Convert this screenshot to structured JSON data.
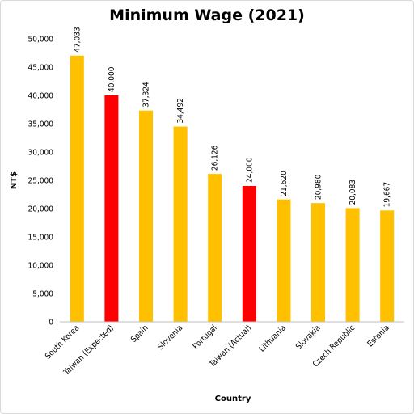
{
  "chart_data": {
    "type": "bar",
    "title": "Minimum Wage (2021)",
    "xlabel": "Country",
    "ylabel": "NT$",
    "ylim": [
      0,
      50000
    ],
    "yticks": [
      0,
      5000,
      10000,
      15000,
      20000,
      25000,
      30000,
      35000,
      40000,
      45000,
      50000
    ],
    "ytick_labels": [
      "0",
      "5,000",
      "10,000",
      "15,000",
      "20,000",
      "25,000",
      "30,000",
      "35,000",
      "40,000",
      "45,000",
      "50,000"
    ],
    "grid": false,
    "categories": [
      "South Korea",
      "Taiwan (Expected)",
      "Spain",
      "Slovenia",
      "Portugal",
      "Taiwan (Actual)",
      "Lithuania",
      "Slovakia",
      "Czech Republic",
      "Estonia"
    ],
    "values": [
      47033,
      40000,
      37324,
      34492,
      26126,
      24000,
      21620,
      20980,
      20083,
      19667
    ],
    "data_labels": [
      "47,033",
      "40,000",
      "37,324",
      "34,492",
      "26,126",
      "24,000",
      "21,620",
      "20,980",
      "20,083",
      "19,667"
    ],
    "colors": [
      "#FFC000",
      "#FF0000",
      "#FFC000",
      "#FFC000",
      "#FFC000",
      "#FF0000",
      "#FFC000",
      "#FFC000",
      "#FFC000",
      "#FFC000"
    ]
  }
}
